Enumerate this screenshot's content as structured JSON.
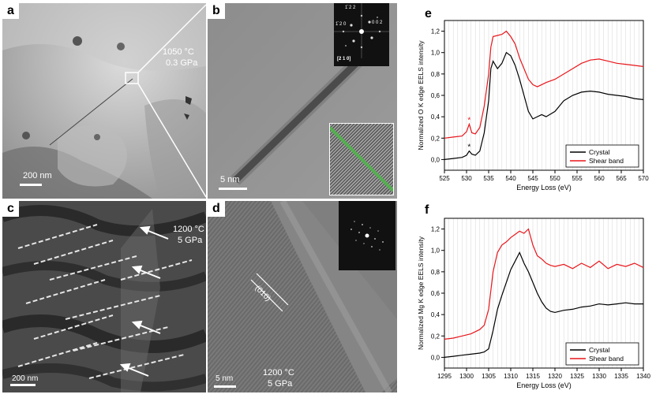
{
  "panels": {
    "a": {
      "label": "a",
      "condition_line1": "1050 °C",
      "condition_line2": "0.3 GPa",
      "scale": "200  nm"
    },
    "b": {
      "label": "b",
      "scale": "5  nm",
      "fft_labels": {
        "l1": "1̄ 2 2",
        "l2": "1̄ 2 0",
        "l3": "0 0 2",
        "zone": "[2 1 0]"
      }
    },
    "c": {
      "label": "c",
      "condition_line1": "1200 °C",
      "condition_line2": "5 GPa",
      "scale": "200 nm"
    },
    "d": {
      "label": "d",
      "scale": "5 nm",
      "plane": "(010)",
      "condition_line1": "1200 °C",
      "condition_line2": "5 GPa"
    },
    "e": {
      "label": "e"
    },
    "f": {
      "label": "f"
    }
  },
  "chart_data": [
    {
      "type": "line",
      "panel": "e",
      "xlabel": "Energy Loss (eV)",
      "ylabel": "Normalized O K edge EELS intensity",
      "xlim": [
        525,
        570
      ],
      "ylim": [
        -0.1,
        1.3
      ],
      "xticks": [
        525,
        530,
        535,
        540,
        545,
        550,
        555,
        560,
        565,
        570
      ],
      "yticks": [
        0.0,
        0.2,
        0.4,
        0.6,
        0.8,
        1.0,
        1.2
      ],
      "ytick_labels": [
        "0,0",
        "0,2",
        "0,4",
        "0,6",
        "0,8",
        "1,0",
        "1,2"
      ],
      "grid": "vertical",
      "legend": "bottom-right",
      "annotations": [
        "*",
        "*"
      ],
      "series": [
        {
          "name": "Crystal",
          "color": "#000000",
          "x": [
            525,
            527,
            529,
            530,
            530.6,
            531.2,
            532,
            533,
            534,
            535,
            535.5,
            536,
            537,
            538,
            539,
            540,
            541,
            542,
            543,
            544,
            545,
            546,
            547,
            548,
            550,
            552,
            554,
            556,
            558,
            560,
            562,
            564,
            566,
            568,
            570
          ],
          "y": [
            0.0,
            0.01,
            0.02,
            0.04,
            0.08,
            0.05,
            0.04,
            0.08,
            0.25,
            0.55,
            0.85,
            0.92,
            0.85,
            0.9,
            1.0,
            0.97,
            0.88,
            0.75,
            0.6,
            0.45,
            0.38,
            0.4,
            0.42,
            0.4,
            0.45,
            0.55,
            0.6,
            0.63,
            0.64,
            0.63,
            0.61,
            0.6,
            0.59,
            0.57,
            0.56
          ]
        },
        {
          "name": "Shear band",
          "color": "#e8161b",
          "x": [
            525,
            527,
            529,
            530,
            530.6,
            531.2,
            532,
            533,
            534,
            535,
            535.5,
            536,
            537,
            538,
            539,
            540,
            541,
            542,
            543,
            544,
            545,
            546,
            547,
            548,
            550,
            552,
            554,
            556,
            558,
            560,
            562,
            564,
            566,
            568,
            570
          ],
          "y": [
            0.2,
            0.21,
            0.22,
            0.26,
            0.33,
            0.25,
            0.24,
            0.3,
            0.5,
            0.8,
            1.05,
            1.15,
            1.16,
            1.17,
            1.2,
            1.15,
            1.08,
            0.95,
            0.85,
            0.75,
            0.7,
            0.68,
            0.7,
            0.72,
            0.75,
            0.8,
            0.85,
            0.9,
            0.93,
            0.94,
            0.92,
            0.9,
            0.89,
            0.88,
            0.87
          ]
        }
      ]
    },
    {
      "type": "line",
      "panel": "f",
      "xlabel": "Energy Loss (eV)",
      "ylabel": "Normalized Mg K edge EELS intensity",
      "xlim": [
        1295,
        1340
      ],
      "ylim": [
        -0.1,
        1.3
      ],
      "xticks": [
        1295,
        1300,
        1305,
        1310,
        1315,
        1320,
        1325,
        1330,
        1335,
        1340
      ],
      "yticks": [
        0.0,
        0.2,
        0.4,
        0.6,
        0.8,
        1.0,
        1.2
      ],
      "ytick_labels": [
        "0,0",
        "0,2",
        "0,4",
        "0,6",
        "0,8",
        "1,0",
        "1,2"
      ],
      "grid": "vertical",
      "legend": "bottom-right",
      "series": [
        {
          "name": "Crystal",
          "color": "#000000",
          "x": [
            1295,
            1297,
            1299,
            1301,
            1303,
            1304,
            1305,
            1306,
            1307,
            1308,
            1309,
            1310,
            1311,
            1312,
            1313,
            1314,
            1315,
            1316,
            1317,
            1318,
            1319,
            1320,
            1322,
            1324,
            1326,
            1328,
            1330,
            1332,
            1334,
            1336,
            1338,
            1340
          ],
          "y": [
            0.0,
            0.01,
            0.02,
            0.03,
            0.04,
            0.05,
            0.08,
            0.25,
            0.45,
            0.58,
            0.7,
            0.82,
            0.9,
            0.98,
            0.88,
            0.8,
            0.7,
            0.6,
            0.52,
            0.46,
            0.43,
            0.42,
            0.44,
            0.45,
            0.47,
            0.48,
            0.5,
            0.49,
            0.5,
            0.51,
            0.5,
            0.5
          ]
        },
        {
          "name": "Shear band",
          "color": "#e8161b",
          "x": [
            1295,
            1297,
            1299,
            1301,
            1303,
            1304,
            1305,
            1306,
            1307,
            1308,
            1309,
            1310,
            1311,
            1312,
            1313,
            1314,
            1315,
            1316,
            1317,
            1318,
            1319,
            1320,
            1322,
            1324,
            1326,
            1328,
            1330,
            1332,
            1334,
            1336,
            1338,
            1340
          ],
          "y": [
            0.17,
            0.18,
            0.2,
            0.22,
            0.26,
            0.3,
            0.45,
            0.8,
            0.98,
            1.05,
            1.08,
            1.12,
            1.15,
            1.18,
            1.16,
            1.2,
            1.05,
            0.95,
            0.92,
            0.88,
            0.86,
            0.85,
            0.87,
            0.83,
            0.88,
            0.84,
            0.9,
            0.83,
            0.87,
            0.85,
            0.88,
            0.84
          ]
        }
      ]
    }
  ]
}
